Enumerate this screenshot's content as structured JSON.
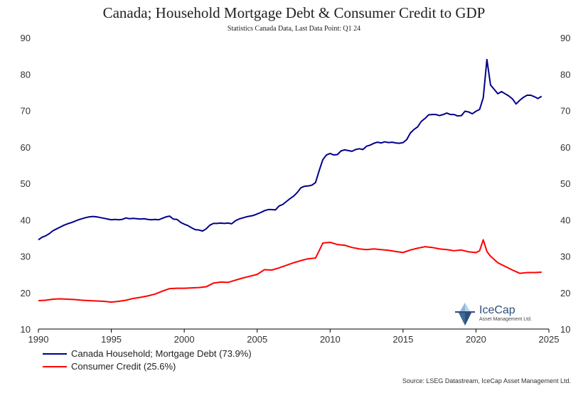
{
  "chart_data": {
    "type": "line",
    "title": "Canada; Household Mortgage Debt & Consumer Credit to GDP",
    "subtitle": "Statistics Canada Data,  Last Data Point: Q1 24",
    "xlim": [
      1990,
      2025
    ],
    "ylim": [
      10,
      90
    ],
    "x_ticks": [
      1990,
      1995,
      2000,
      2005,
      2010,
      2015,
      2020,
      2025
    ],
    "y_ticks": [
      10,
      20,
      30,
      40,
      50,
      60,
      70,
      80,
      90
    ],
    "grid": false,
    "legend_position": "bottom-left",
    "series": [
      {
        "name": "Canada Household; Mortgage Debt (73.9%)",
        "color": "#00008b",
        "points": [
          [
            1990.0,
            34.5
          ],
          [
            1990.25,
            35.2
          ],
          [
            1990.5,
            35.6
          ],
          [
            1990.75,
            36.2
          ],
          [
            1991.0,
            37.0
          ],
          [
            1991.25,
            37.5
          ],
          [
            1991.5,
            38.0
          ],
          [
            1991.75,
            38.5
          ],
          [
            1992.0,
            38.9
          ],
          [
            1992.25,
            39.2
          ],
          [
            1992.5,
            39.6
          ],
          [
            1992.75,
            40.0
          ],
          [
            1993.0,
            40.3
          ],
          [
            1993.25,
            40.6
          ],
          [
            1993.5,
            40.8
          ],
          [
            1993.75,
            40.9
          ],
          [
            1994.0,
            40.8
          ],
          [
            1994.25,
            40.6
          ],
          [
            1994.5,
            40.4
          ],
          [
            1994.75,
            40.2
          ],
          [
            1995.0,
            40.0
          ],
          [
            1995.25,
            40.1
          ],
          [
            1995.5,
            40.0
          ],
          [
            1995.75,
            40.1
          ],
          [
            1996.0,
            40.5
          ],
          [
            1996.25,
            40.3
          ],
          [
            1996.5,
            40.4
          ],
          [
            1996.75,
            40.3
          ],
          [
            1997.0,
            40.2
          ],
          [
            1997.25,
            40.3
          ],
          [
            1997.5,
            40.1
          ],
          [
            1997.75,
            40.0
          ],
          [
            1998.0,
            40.1
          ],
          [
            1998.25,
            40.0
          ],
          [
            1998.5,
            40.4
          ],
          [
            1998.75,
            40.8
          ],
          [
            1999.0,
            41.0
          ],
          [
            1999.25,
            40.2
          ],
          [
            1999.5,
            40.1
          ],
          [
            1999.75,
            39.3
          ],
          [
            2000.0,
            38.8
          ],
          [
            2000.25,
            38.4
          ],
          [
            2000.5,
            37.8
          ],
          [
            2000.75,
            37.3
          ],
          [
            2001.0,
            37.2
          ],
          [
            2001.25,
            36.9
          ],
          [
            2001.5,
            37.5
          ],
          [
            2001.75,
            38.5
          ],
          [
            2002.0,
            39.0
          ],
          [
            2002.25,
            39.0
          ],
          [
            2002.5,
            39.1
          ],
          [
            2002.75,
            39.0
          ],
          [
            2003.0,
            39.1
          ],
          [
            2003.25,
            38.9
          ],
          [
            2003.5,
            39.7
          ],
          [
            2003.75,
            40.2
          ],
          [
            2004.0,
            40.5
          ],
          [
            2004.25,
            40.8
          ],
          [
            2004.5,
            41.0
          ],
          [
            2004.75,
            41.2
          ],
          [
            2005.0,
            41.6
          ],
          [
            2005.25,
            42.0
          ],
          [
            2005.5,
            42.5
          ],
          [
            2005.75,
            42.8
          ],
          [
            2006.0,
            42.8
          ],
          [
            2006.25,
            42.7
          ],
          [
            2006.5,
            43.8
          ],
          [
            2006.75,
            44.2
          ],
          [
            2007.0,
            45.0
          ],
          [
            2007.25,
            45.8
          ],
          [
            2007.5,
            46.5
          ],
          [
            2007.75,
            47.5
          ],
          [
            2008.0,
            48.8
          ],
          [
            2008.25,
            49.2
          ],
          [
            2008.5,
            49.3
          ],
          [
            2008.75,
            49.5
          ],
          [
            2009.0,
            50.2
          ],
          [
            2009.25,
            53.5
          ],
          [
            2009.5,
            56.5
          ],
          [
            2009.75,
            57.8
          ],
          [
            2010.0,
            58.2
          ],
          [
            2010.25,
            57.8
          ],
          [
            2010.5,
            57.9
          ],
          [
            2010.75,
            58.9
          ],
          [
            2011.0,
            59.2
          ],
          [
            2011.25,
            59.0
          ],
          [
            2011.5,
            58.8
          ],
          [
            2011.75,
            59.3
          ],
          [
            2012.0,
            59.5
          ],
          [
            2012.25,
            59.3
          ],
          [
            2012.5,
            60.2
          ],
          [
            2012.75,
            60.5
          ],
          [
            2013.0,
            61.0
          ],
          [
            2013.25,
            61.3
          ],
          [
            2013.5,
            61.1
          ],
          [
            2013.75,
            61.4
          ],
          [
            2014.0,
            61.2
          ],
          [
            2014.25,
            61.3
          ],
          [
            2014.5,
            61.1
          ],
          [
            2014.75,
            61.0
          ],
          [
            2015.0,
            61.2
          ],
          [
            2015.25,
            62.0
          ],
          [
            2015.5,
            63.8
          ],
          [
            2015.75,
            64.8
          ],
          [
            2016.0,
            65.5
          ],
          [
            2016.25,
            67.0
          ],
          [
            2016.5,
            67.8
          ],
          [
            2016.75,
            68.8
          ],
          [
            2017.0,
            68.9
          ],
          [
            2017.25,
            68.9
          ],
          [
            2017.5,
            68.6
          ],
          [
            2017.75,
            68.9
          ],
          [
            2018.0,
            69.3
          ],
          [
            2018.25,
            68.9
          ],
          [
            2018.5,
            68.9
          ],
          [
            2018.75,
            68.5
          ],
          [
            2019.0,
            68.6
          ],
          [
            2019.25,
            69.8
          ],
          [
            2019.5,
            69.6
          ],
          [
            2019.75,
            69.1
          ],
          [
            2020.0,
            69.8
          ],
          [
            2020.25,
            70.3
          ],
          [
            2020.5,
            73.5
          ],
          [
            2020.75,
            84.0
          ],
          [
            2021.0,
            77.0
          ],
          [
            2021.25,
            75.8
          ],
          [
            2021.5,
            74.6
          ],
          [
            2021.75,
            75.2
          ],
          [
            2022.0,
            74.6
          ],
          [
            2022.25,
            74.0
          ],
          [
            2022.5,
            73.2
          ],
          [
            2022.75,
            71.8
          ],
          [
            2023.0,
            72.8
          ],
          [
            2023.25,
            73.6
          ],
          [
            2023.5,
            74.2
          ],
          [
            2023.75,
            74.2
          ],
          [
            2024.0,
            73.8
          ],
          [
            2024.25,
            73.3
          ],
          [
            2024.5,
            73.9
          ]
        ]
      },
      {
        "name": "Consumer Credit (25.6%)",
        "color": "#ff0000",
        "points": [
          [
            1990.0,
            17.8
          ],
          [
            1990.5,
            17.9
          ],
          [
            1991.0,
            18.2
          ],
          [
            1991.5,
            18.3
          ],
          [
            1992.0,
            18.2
          ],
          [
            1992.5,
            18.1
          ],
          [
            1993.0,
            17.9
          ],
          [
            1993.5,
            17.8
          ],
          [
            1994.0,
            17.7
          ],
          [
            1994.5,
            17.6
          ],
          [
            1995.0,
            17.4
          ],
          [
            1995.5,
            17.6
          ],
          [
            1996.0,
            17.9
          ],
          [
            1996.5,
            18.4
          ],
          [
            1997.0,
            18.7
          ],
          [
            1997.5,
            19.1
          ],
          [
            1998.0,
            19.6
          ],
          [
            1998.5,
            20.4
          ],
          [
            1999.0,
            21.1
          ],
          [
            1999.5,
            21.2
          ],
          [
            2000.0,
            21.2
          ],
          [
            2000.5,
            21.3
          ],
          [
            2001.0,
            21.4
          ],
          [
            2001.5,
            21.6
          ],
          [
            2002.0,
            22.6
          ],
          [
            2002.5,
            22.9
          ],
          [
            2003.0,
            22.8
          ],
          [
            2003.5,
            23.4
          ],
          [
            2004.0,
            24.0
          ],
          [
            2004.5,
            24.5
          ],
          [
            2005.0,
            25.0
          ],
          [
            2005.5,
            26.3
          ],
          [
            2006.0,
            26.2
          ],
          [
            2006.5,
            26.8
          ],
          [
            2007.0,
            27.5
          ],
          [
            2007.5,
            28.2
          ],
          [
            2008.0,
            28.8
          ],
          [
            2008.5,
            29.3
          ],
          [
            2009.0,
            29.5
          ],
          [
            2009.25,
            31.5
          ],
          [
            2009.5,
            33.6
          ],
          [
            2010.0,
            33.8
          ],
          [
            2010.5,
            33.2
          ],
          [
            2011.0,
            33.0
          ],
          [
            2011.5,
            32.4
          ],
          [
            2012.0,
            32.0
          ],
          [
            2012.5,
            31.8
          ],
          [
            2013.0,
            32.0
          ],
          [
            2013.5,
            31.8
          ],
          [
            2014.0,
            31.6
          ],
          [
            2014.5,
            31.3
          ],
          [
            2015.0,
            31.0
          ],
          [
            2015.5,
            31.7
          ],
          [
            2016.0,
            32.2
          ],
          [
            2016.5,
            32.6
          ],
          [
            2017.0,
            32.4
          ],
          [
            2017.5,
            32.0
          ],
          [
            2018.0,
            31.8
          ],
          [
            2018.5,
            31.5
          ],
          [
            2019.0,
            31.7
          ],
          [
            2019.5,
            31.2
          ],
          [
            2020.0,
            31.0
          ],
          [
            2020.25,
            31.5
          ],
          [
            2020.5,
            34.5
          ],
          [
            2020.75,
            31.3
          ],
          [
            2021.0,
            30.0
          ],
          [
            2021.5,
            28.2
          ],
          [
            2022.0,
            27.2
          ],
          [
            2022.5,
            26.2
          ],
          [
            2023.0,
            25.3
          ],
          [
            2023.5,
            25.5
          ],
          [
            2024.0,
            25.5
          ],
          [
            2024.5,
            25.6
          ]
        ]
      }
    ]
  },
  "logo": {
    "name": "IceCap",
    "tagline": "Asset Management Ltd."
  },
  "source": "Source: LSEG Datastream, IceCap Asset Management Ltd."
}
